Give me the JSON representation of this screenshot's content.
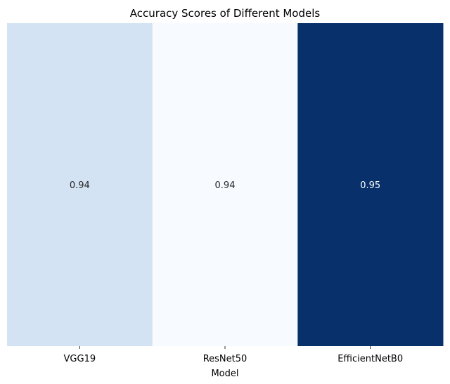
{
  "chart_data": {
    "type": "heatmap",
    "title": "Accuracy Scores of Different Models",
    "xlabel": "Model",
    "ylabel": "",
    "categories": [
      "VGG19",
      "ResNet50",
      "EfficientNetB0"
    ],
    "values": [
      0.94,
      0.94,
      0.95
    ],
    "value_labels": [
      "0.94",
      "0.94",
      "0.95"
    ],
    "colors": [
      "#d3e3f3",
      "#f7fbff",
      "#08306b"
    ],
    "label_colors": [
      "#262626",
      "#262626",
      "#ffffff"
    ],
    "colormap": "Blues",
    "colorbar": false,
    "grid": false
  }
}
